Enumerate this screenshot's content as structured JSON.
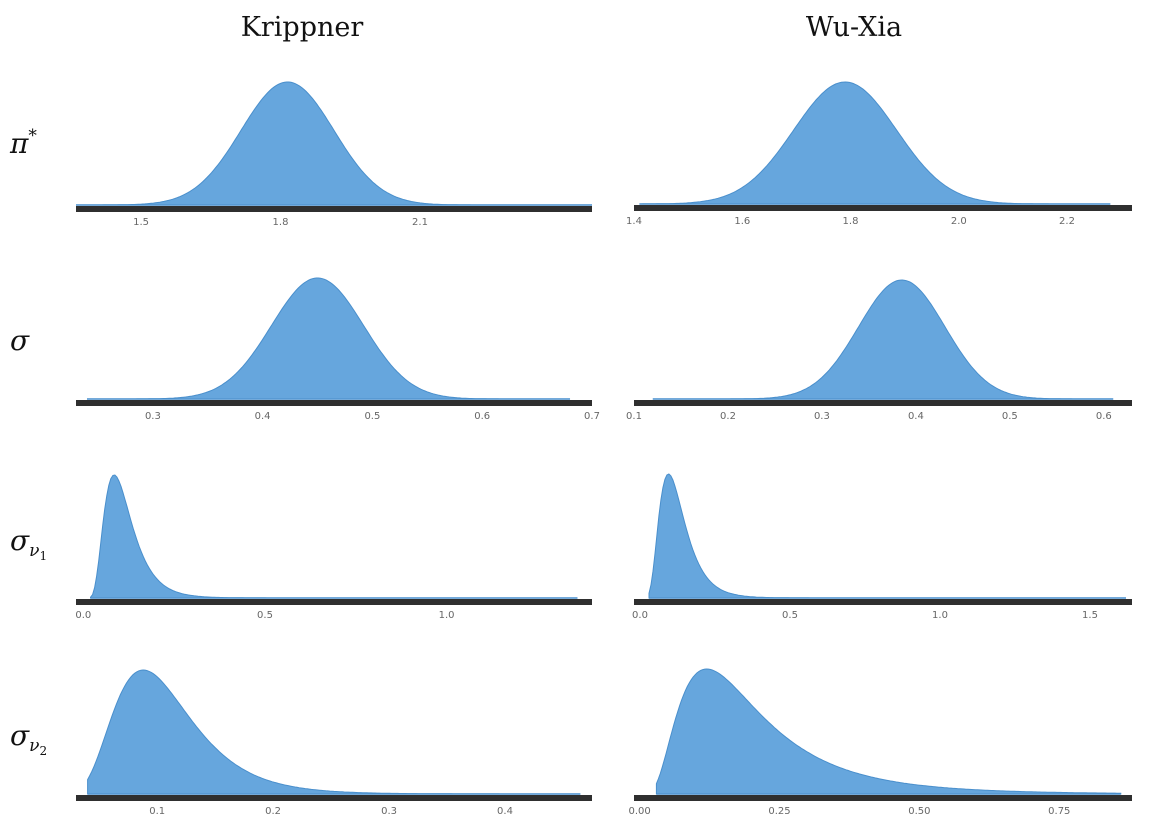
{
  "column_titles": [
    "Krippner",
    "Wu-Xia"
  ],
  "row_labels": [
    {
      "base": "π",
      "sup": "*",
      "sub": "",
      "subsub": ""
    },
    {
      "base": "σ",
      "sup": "",
      "sub": "",
      "subsub": ""
    },
    {
      "base": "σ",
      "sup": "",
      "sub": "ν",
      "subsub": "1"
    },
    {
      "base": "σ",
      "sup": "",
      "sub": "ν",
      "subsub": "2"
    }
  ],
  "colors": {
    "fill": "#66a6dd",
    "edge": "#4a8fcc",
    "axis": "#2f2f2f"
  },
  "chart_data": [
    {
      "type": "area",
      "panel": "Krippner / π*",
      "xlim": [
        1.36,
        2.47
      ],
      "ticks": [
        1.5,
        1.8,
        2.1
      ],
      "tick_labels": [
        "1.5",
        "1.8",
        "2.1"
      ],
      "density": {
        "shape": "normal",
        "mean": 1.815,
        "sd": 0.1,
        "support": [
          1.36,
          2.47
        ]
      }
    },
    {
      "type": "area",
      "panel": "Wu-Xia / π*",
      "xlim": [
        1.4,
        2.32
      ],
      "ticks": [
        1.4,
        1.6,
        1.8,
        2.0,
        2.2
      ],
      "tick_labels": [
        "1.4",
        "1.6",
        "1.8",
        "2.0",
        "2.2"
      ],
      "density": {
        "shape": "normal",
        "mean": 1.79,
        "sd": 0.095,
        "support": [
          1.41,
          2.28
        ]
      }
    },
    {
      "type": "area",
      "panel": "Krippner / σ",
      "xlim": [
        0.23,
        0.7
      ],
      "ticks": [
        0.3,
        0.4,
        0.5,
        0.6,
        0.7
      ],
      "tick_labels": [
        "0.3",
        "0.4",
        "0.5",
        "0.6",
        "0.7"
      ],
      "density": {
        "shape": "normal",
        "mean": 0.45,
        "sd": 0.042,
        "support": [
          0.24,
          0.68
        ]
      }
    },
    {
      "type": "area",
      "panel": "Wu-Xia / σ",
      "xlim": [
        0.1,
        0.63
      ],
      "ticks": [
        0.1,
        0.2,
        0.3,
        0.4,
        0.5,
        0.6
      ],
      "tick_labels": [
        "0.1",
        "0.2",
        "0.3",
        "0.4",
        "0.5",
        "0.6"
      ],
      "density": {
        "shape": "normal",
        "mean": 0.385,
        "sd": 0.046,
        "support": [
          0.12,
          0.61
        ]
      }
    },
    {
      "type": "area",
      "panel": "Krippner / σν1",
      "xlim": [
        -0.02,
        1.4
      ],
      "ticks": [
        0.0,
        0.5,
        1.0
      ],
      "tick_labels": [
        "0.0",
        "0.5",
        "1.0"
      ],
      "density": {
        "shape": "lognormal",
        "mode": 0.085,
        "s": 0.45,
        "support": [
          0.02,
          1.36
        ]
      }
    },
    {
      "type": "area",
      "panel": "Wu-Xia / σν1",
      "xlim": [
        -0.02,
        1.64
      ],
      "ticks": [
        0.0,
        0.5,
        1.0,
        1.5
      ],
      "tick_labels": [
        "0.0",
        "0.5",
        "1.0",
        "1.5"
      ],
      "density": {
        "shape": "lognormal",
        "mode": 0.095,
        "s": 0.45,
        "support": [
          0.03,
          1.62
        ]
      }
    },
    {
      "type": "area",
      "panel": "Krippner / σν2",
      "xlim": [
        0.03,
        0.475
      ],
      "ticks": [
        0.1,
        0.2,
        0.3,
        0.4
      ],
      "tick_labels": [
        "0.1",
        "0.2",
        "0.3",
        "0.4"
      ],
      "density": {
        "shape": "lognormal",
        "mode": 0.088,
        "s": 0.38,
        "support": [
          0.04,
          0.465
        ]
      }
    },
    {
      "type": "area",
      "panel": "Wu-Xia / σν2",
      "xlim": [
        -0.01,
        0.88
      ],
      "ticks": [
        0.0,
        0.25,
        0.5,
        0.75
      ],
      "tick_labels": [
        "0.00",
        "0.25",
        "0.50",
        "0.75"
      ],
      "density": {
        "shape": "lognormal",
        "mode": 0.12,
        "s": 0.62,
        "support": [
          0.03,
          0.86
        ]
      }
    }
  ]
}
